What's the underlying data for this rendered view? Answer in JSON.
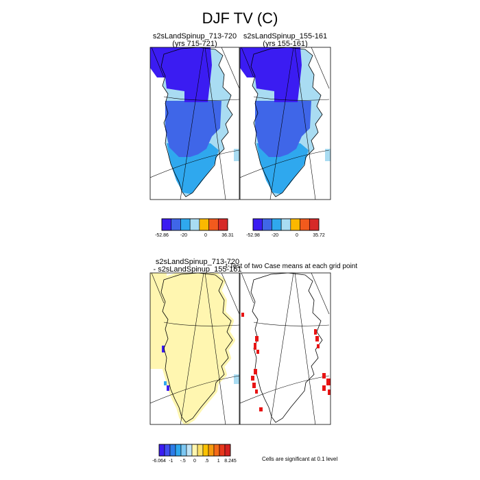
{
  "figure": {
    "title": "DJF TV (C)"
  },
  "panels": {
    "case1": {
      "line1": "s2sLandSpinup_713-720",
      "line2": "(yrs 715-721)"
    },
    "case2": {
      "line1": "s2sLandSpinup_155-161",
      "line2": "(yrs 155-161)"
    },
    "diff": {
      "line1": "s2sLandSpinup_713-720",
      "line2": "- s2sLandSpinup_155-161"
    },
    "ttest": {
      "title": "t-Test of two Case means at each grid point"
    }
  },
  "colorbars": {
    "case1": {
      "labels": [
        "-52.86",
        "-20",
        "0",
        "36.31"
      ],
      "colors": [
        "#3b1cf2",
        "#3f66e8",
        "#2fa8ee",
        "#a9dcf2",
        "#fbb800",
        "#f25a1d",
        "#d62a28"
      ]
    },
    "case2": {
      "labels": [
        "-52.98",
        "-20",
        "0",
        "35.72"
      ],
      "colors": [
        "#3b1cf2",
        "#3f66e8",
        "#2fa8ee",
        "#a9dcf2",
        "#fbb800",
        "#f25a1d",
        "#d62a28"
      ]
    },
    "diff": {
      "labels": [
        "-6.064",
        "-1",
        "-.5",
        "0",
        ".5",
        "1",
        "8.245"
      ],
      "colors": [
        "#3b1cf2",
        "#3f4ef0",
        "#2d7ce8",
        "#2fa8ee",
        "#7cc7f2",
        "#bfe3f5",
        "#fff6b0",
        "#fbe06a",
        "#fbc200",
        "#f79a10",
        "#f46a18",
        "#e8381c",
        "#d42020"
      ]
    }
  },
  "significance_note": "Cells are significant at 0.1 level",
  "colors": {
    "deep_blue": "#3b1cf2",
    "mid_blue": "#3f66e8",
    "light_blue": "#2fa8ee",
    "pale_blue": "#a9dcf2",
    "diff_yellow": "#fff6b0",
    "significant_red": "#e81414",
    "panel_border": "#000000"
  },
  "chart_data": [
    {
      "type": "heatmap",
      "title": "s2sLandSpinup_713-720 (yrs 715-721)",
      "field": "DJF TV (C)",
      "range": [
        -52.86,
        36.31
      ],
      "colorbar_labels": [
        "-52.86",
        "-20",
        "0",
        "36.31"
      ],
      "pattern": "north = deep blue, center = blue, south = light blue, coast = pale blue"
    },
    {
      "type": "heatmap",
      "title": "s2sLandSpinup_155-161 (yrs 155-161)",
      "field": "DJF TV (C)",
      "range": [
        -52.98,
        35.72
      ],
      "colorbar_labels": [
        "-52.98",
        "-20",
        "0",
        "35.72"
      ],
      "pattern": "north = deep blue, center = blue, south = light blue, coast = pale blue"
    },
    {
      "type": "heatmap",
      "title": "s2sLandSpinup_713-720 - s2sLandSpinup_155-161",
      "range": [
        -6.064,
        8.245
      ],
      "colorbar_labels": [
        "-6.064",
        "-1",
        "-.5",
        "0",
        ".5",
        "1",
        "8.245"
      ],
      "pattern": "nearly uniform 0 to .5 (pale yellow) with small blue cells on the west coast"
    },
    {
      "type": "heatmap",
      "title": "t-Test of two Case means at each grid point",
      "note": "Cells are significant at 0.1 level",
      "pattern": "significant cells (red) along the west and east coasts"
    }
  ]
}
